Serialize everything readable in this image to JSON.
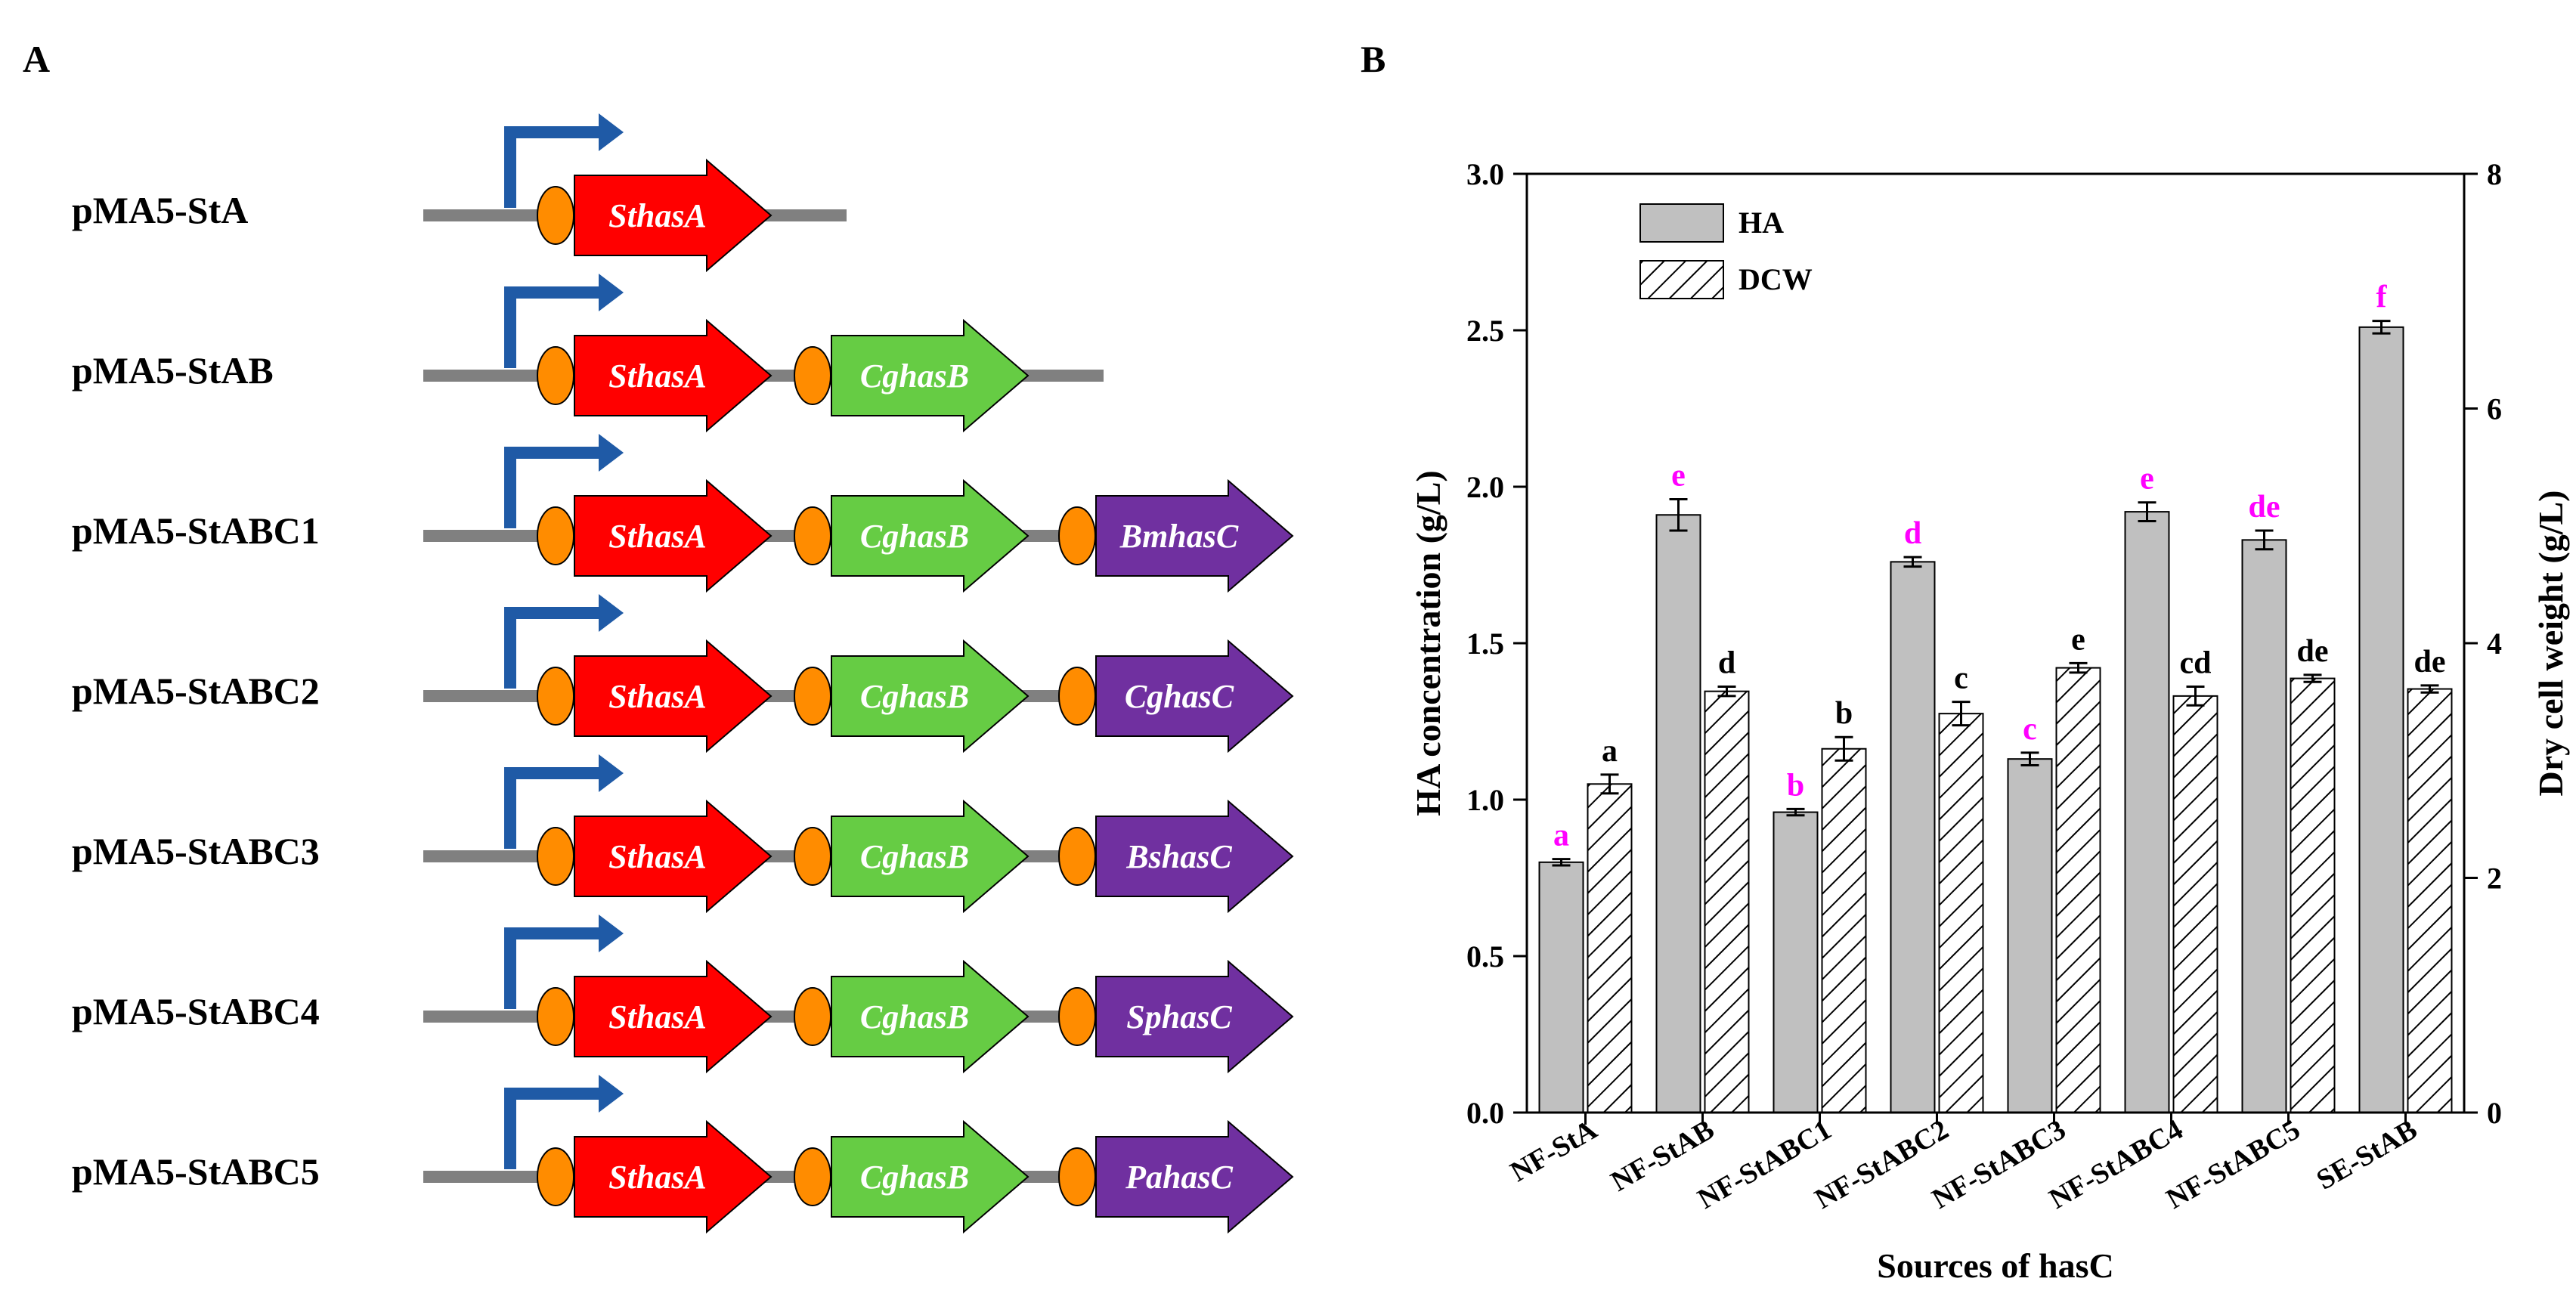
{
  "panel_a": {
    "label": "A",
    "constructs": [
      {
        "name": "pMA5-StA",
        "genes": [
          {
            "label": "SthasA",
            "color": "#ff0000"
          }
        ]
      },
      {
        "name": "pMA5-StAB",
        "genes": [
          {
            "label": "SthasA",
            "color": "#ff0000"
          },
          {
            "label": "CghasB",
            "color": "#66cc44"
          }
        ]
      },
      {
        "name": "pMA5-StABC1",
        "genes": [
          {
            "label": "SthasA",
            "color": "#ff0000"
          },
          {
            "label": "CghasB",
            "color": "#66cc44"
          },
          {
            "label": "BmhasC",
            "color": "#7030a0"
          }
        ]
      },
      {
        "name": "pMA5-StABC2",
        "genes": [
          {
            "label": "SthasA",
            "color": "#ff0000"
          },
          {
            "label": "CghasB",
            "color": "#66cc44"
          },
          {
            "label": "CghasC",
            "color": "#7030a0"
          }
        ]
      },
      {
        "name": "pMA5-StABC3",
        "genes": [
          {
            "label": "SthasA",
            "color": "#ff0000"
          },
          {
            "label": "CghasB",
            "color": "#66cc44"
          },
          {
            "label": "BshasC",
            "color": "#7030a0"
          }
        ]
      },
      {
        "name": "pMA5-StABC4",
        "genes": [
          {
            "label": "SthasA",
            "color": "#ff0000"
          },
          {
            "label": "CghasB",
            "color": "#66cc44"
          },
          {
            "label": "SphasC",
            "color": "#7030a0"
          }
        ]
      },
      {
        "name": "pMA5-StABC5",
        "genes": [
          {
            "label": "SthasA",
            "color": "#ff0000"
          },
          {
            "label": "CghasB",
            "color": "#66cc44"
          },
          {
            "label": "PahasC",
            "color": "#7030a0"
          }
        ]
      }
    ],
    "colors": {
      "backbone": "#808080",
      "promoter": "#1f5aa6",
      "rbs": "#ff8c00"
    }
  },
  "chart_data": {
    "panel_label": "B",
    "type": "bar",
    "xlabel": "Sources of hasC",
    "ylabel_left": "HA concentration (g/L)",
    "ylabel_right": "Dry cell weight (g/L)",
    "ylim_left": [
      0,
      3.0
    ],
    "ylim_right": [
      0,
      8
    ],
    "yticks_left": [
      "0.0",
      "0.5",
      "1.0",
      "1.5",
      "2.0",
      "2.5",
      "3.0"
    ],
    "yticks_right": [
      "0",
      "2",
      "4",
      "6",
      "8"
    ],
    "categories": [
      "NF-StA",
      "NF-StAB",
      "NF-StABC1",
      "NF-StABC2",
      "NF-StABC3",
      "NF-StABC4",
      "NF-StABC5",
      "SE-StAB"
    ],
    "series": [
      {
        "name": "HA",
        "axis": "left",
        "fill": "#c0c0c0",
        "pattern": "solid",
        "values": [
          0.8,
          1.91,
          0.96,
          1.76,
          1.13,
          1.92,
          1.83,
          2.51
        ],
        "errors": [
          0.01,
          0.05,
          0.01,
          0.015,
          0.02,
          0.03,
          0.03,
          0.02
        ],
        "letters": [
          "a",
          "e",
          "b",
          "d",
          "c",
          "e",
          "de",
          "f"
        ],
        "letter_color": "#ff00ff"
      },
      {
        "name": "DCW",
        "axis": "right",
        "fill": "#ffffff",
        "pattern": "hatch",
        "values": [
          2.8,
          3.59,
          3.1,
          3.4,
          3.79,
          3.55,
          3.7,
          3.61
        ],
        "errors": [
          0.08,
          0.04,
          0.1,
          0.1,
          0.04,
          0.08,
          0.03,
          0.03
        ],
        "letters": [
          "a",
          "d",
          "b",
          "c",
          "e",
          "cd",
          "de",
          "de"
        ],
        "letter_color": "#000000"
      }
    ],
    "legend": {
      "position": "top-left",
      "items": [
        "HA",
        "DCW"
      ]
    }
  }
}
